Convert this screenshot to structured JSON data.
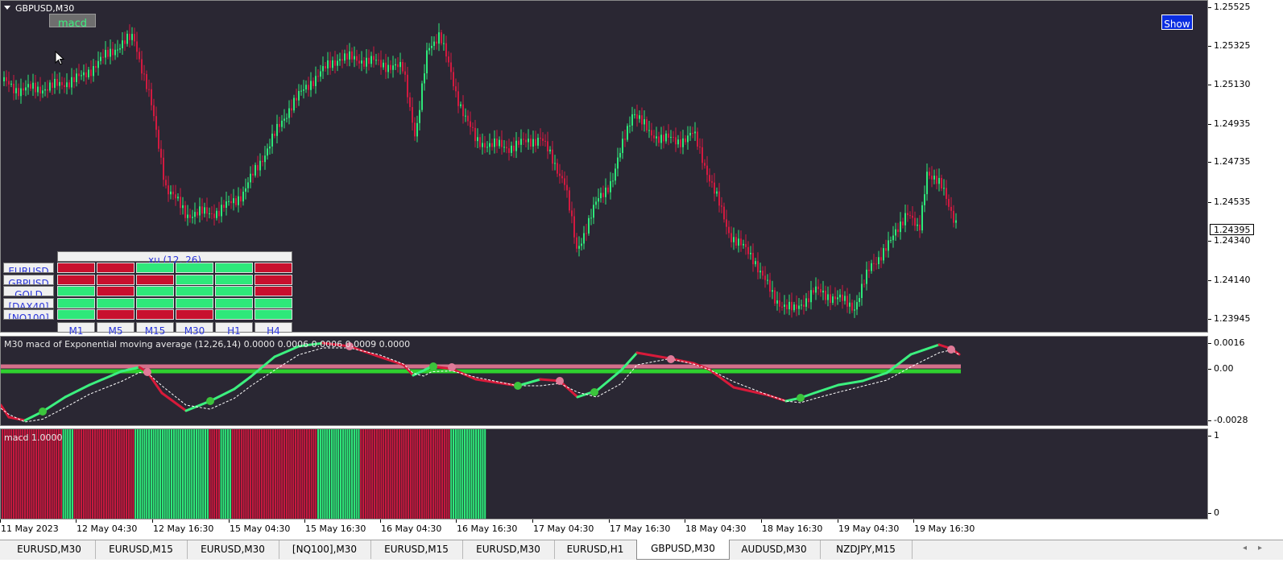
{
  "main_chart": {
    "symbol_title": "GBPUSD,M30",
    "indicator_button": "macd",
    "show_button": "Show",
    "current_price": "1.24395",
    "price_labels": [
      "1.25525",
      "1.25325",
      "1.25130",
      "1.24935",
      "1.24735",
      "1.24535",
      "1.24340",
      "1.24140",
      "1.23945"
    ]
  },
  "signal_table": {
    "header": "xu (12, 26)",
    "rows": [
      {
        "symbol": "EURUSD",
        "cells": [
          "red",
          "red",
          "green",
          "green",
          "green",
          "red"
        ]
      },
      {
        "symbol": "GBPUSD",
        "cells": [
          "red",
          "red",
          "red",
          "green",
          "green",
          "red"
        ]
      },
      {
        "symbol": "GOLD",
        "cells": [
          "green",
          "red",
          "green",
          "green",
          "green",
          "red"
        ]
      },
      {
        "symbol": "[DAX40]",
        "cells": [
          "green",
          "green",
          "green",
          "green",
          "green",
          "green"
        ]
      },
      {
        "symbol": "[NQ100]",
        "cells": [
          "green",
          "red",
          "red",
          "red",
          "green",
          "green"
        ]
      }
    ],
    "timeframes": [
      "M1",
      "M5",
      "M15",
      "M30",
      "H1",
      "H4"
    ]
  },
  "macd_panel": {
    "title": "M30 macd of Exponential moving average (12,26,14) 0.0000 0.0006 0.0006 0.0009 0.0000",
    "labels": [
      "0.0016",
      "0.00",
      "-0.0028"
    ]
  },
  "hist_panel": {
    "title": "macd 1.0000",
    "labels": [
      "1",
      "0"
    ],
    "segments": [
      {
        "state": "red",
        "count": 27
      },
      {
        "state": "green",
        "count": 5
      },
      {
        "state": "red",
        "count": 27
      },
      {
        "state": "green",
        "count": 33
      },
      {
        "state": "red",
        "count": 5
      },
      {
        "state": "green",
        "count": 5
      },
      {
        "state": "red",
        "count": 38
      },
      {
        "state": "green",
        "count": 19
      },
      {
        "state": "red",
        "count": 40
      },
      {
        "state": "green",
        "count": 16
      }
    ]
  },
  "time_axis": [
    "11 May 2023",
    "12 May 04:30",
    "12 May 16:30",
    "15 May 04:30",
    "15 May 16:30",
    "16 May 04:30",
    "16 May 16:30",
    "17 May 04:30",
    "17 May 16:30",
    "18 May 04:30",
    "18 May 16:30",
    "19 May 04:30",
    "19 May 16:30"
  ],
  "tabs": [
    {
      "label": "EURUSD,M30",
      "active": false
    },
    {
      "label": "EURUSD,M15",
      "active": false
    },
    {
      "label": "EURUSD,M30",
      "active": false
    },
    {
      "label": "[NQ100],M30",
      "active": false
    },
    {
      "label": "EURUSD,M15",
      "active": false
    },
    {
      "label": "EURUSD,M30",
      "active": false
    },
    {
      "label": "EURUSD,H1",
      "active": false
    },
    {
      "label": "GBPUSD,M30",
      "active": true
    },
    {
      "label": "AUDUSD,M30",
      "active": false
    },
    {
      "label": "NZDJPY,M15",
      "active": false
    }
  ],
  "colors": {
    "bull": "#2ee87a",
    "bear": "#d21a40",
    "bg": "#2a2733",
    "macd_up": "#3cf07f",
    "macd_down": "#d81a3a",
    "zero_line": "#2fd02f",
    "signal_line": "#d4708a"
  },
  "icons": {
    "dropdown": "triangle-down-icon",
    "cursor": "mouse-pointer-icon",
    "scroll": "scroll-arrows-icon"
  }
}
